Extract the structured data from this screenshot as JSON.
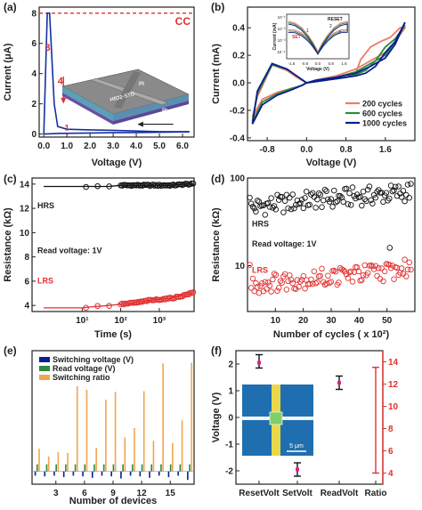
{
  "panels": {
    "a": {
      "label": "(a)"
    },
    "b": {
      "label": "(b)"
    },
    "c": {
      "label": "(c)"
    },
    "d": {
      "label": "(d)"
    },
    "e": {
      "label": "(e)"
    },
    "f": {
      "label": "(f)"
    }
  },
  "colors": {
    "blue": "#1530a0",
    "red": "#e03030",
    "green": "#2e8b3a",
    "salmon": "#f07a68",
    "navy": "#0a1f8f",
    "orange": "#f2a550",
    "magenta": "#e0208a",
    "black": "#111111"
  },
  "chart_data": [
    {
      "id": "a",
      "type": "line",
      "xlabel": "Voltage (V)",
      "ylabel": "Current (μA)",
      "xlim": [
        -0.2,
        6.5
      ],
      "ylim": [
        -0.2,
        8.4
      ],
      "xticks": [
        "0.0",
        "1.0",
        "2.0",
        "3.0",
        "4.0",
        "5.0",
        "6.0"
      ],
      "yticks": [
        "0",
        "2",
        "4",
        "6",
        "8"
      ],
      "compliance": {
        "label": "CC",
        "value": 8.0
      },
      "annotations": {
        "n3": "3",
        "n4": "4",
        "n1": "1"
      },
      "inset": {
        "layer1": "Pt",
        "layer2": "HfO2-STO",
        "layer3": "Pt"
      },
      "series": [
        {
          "x": [
            0,
            0.3,
            0.6,
            1.0,
            2.0,
            3.0,
            4.0,
            5.0,
            6.0,
            6.3
          ],
          "y": [
            0,
            0.02,
            0.04,
            0.05,
            0.07,
            0.09,
            0.1,
            0.12,
            0.14,
            0.15
          ]
        },
        {
          "x": [
            6.3,
            5.0,
            4.0,
            3.0,
            2.0,
            1.0,
            0.6,
            0.45,
            0.35,
            0.25,
            0.15,
            0
          ],
          "y": [
            0.15,
            0.16,
            0.2,
            0.25,
            0.28,
            0.32,
            0.5,
            2.0,
            5.0,
            8.0,
            8.0,
            0
          ]
        }
      ]
    },
    {
      "id": "b",
      "type": "line",
      "xlabel": "Voltage (V)",
      "ylabel": "Current (mA)",
      "xlim": [
        -1.2,
        2.2
      ],
      "ylim": [
        -0.42,
        0.55
      ],
      "xticks": [
        "-0.8",
        "0.0",
        "0.8",
        "1.6"
      ],
      "yticks": [
        "-0.4",
        "-0.2",
        "0.0",
        "0.2",
        "0.4"
      ],
      "legend_position": "bottom-right",
      "series": [
        {
          "name": "200 cycles",
          "x": [
            -1.1,
            -0.9,
            -0.6,
            -0.3,
            -0.1,
            0,
            0.4,
            0.8,
            1.0,
            1.1,
            1.3,
            1.5,
            1.7,
            1.9,
            2.0,
            1.8,
            1.6,
            1.3,
            1.0,
            0.6,
            0.2,
            0,
            -0.2,
            -0.4,
            -0.7,
            -1.0,
            -1.1
          ],
          "y": [
            -0.25,
            -0.12,
            -0.07,
            -0.04,
            -0.02,
            0.0,
            0.02,
            0.04,
            0.07,
            0.17,
            0.26,
            0.3,
            0.33,
            0.4,
            0.4,
            0.3,
            0.22,
            0.16,
            0.1,
            0.05,
            0.02,
            0.0,
            0.04,
            0.09,
            0.13,
            -0.1,
            -0.25
          ]
        },
        {
          "name": "600 cycles",
          "x": [
            -1.1,
            -0.9,
            -0.6,
            -0.3,
            -0.1,
            0,
            0.4,
            0.8,
            1.0,
            1.2,
            1.4,
            1.6,
            1.8,
            2.0,
            1.8,
            1.6,
            1.3,
            1.0,
            0.6,
            0.2,
            0,
            -0.2,
            -0.4,
            -0.7,
            -1.0,
            -1.1
          ],
          "y": [
            -0.28,
            -0.14,
            -0.08,
            -0.04,
            -0.02,
            0.0,
            0.02,
            0.04,
            0.06,
            0.09,
            0.16,
            0.26,
            0.32,
            0.42,
            0.3,
            0.2,
            0.14,
            0.08,
            0.04,
            0.02,
            0.0,
            0.05,
            0.1,
            0.13,
            -0.08,
            -0.28
          ]
        },
        {
          "name": "1000 cycles",
          "x": [
            -1.1,
            -0.9,
            -0.6,
            -0.3,
            -0.1,
            0,
            0.4,
            0.8,
            1.0,
            1.2,
            1.4,
            1.6,
            1.8,
            2.0,
            1.8,
            1.6,
            1.3,
            1.0,
            0.6,
            0.2,
            0,
            -0.2,
            -0.4,
            -0.7,
            -1.0,
            -1.1
          ],
          "y": [
            -0.3,
            -0.16,
            -0.09,
            -0.05,
            -0.02,
            0.0,
            0.02,
            0.04,
            0.05,
            0.07,
            0.12,
            0.22,
            0.3,
            0.44,
            0.28,
            0.18,
            0.12,
            0.07,
            0.04,
            0.02,
            0.0,
            0.05,
            0.1,
            0.14,
            -0.06,
            -0.3
          ]
        }
      ],
      "inset": {
        "xlabel": "Voltage (V)",
        "ylabel": "Current (mA)",
        "xticks": [
          "-1.6",
          "-0.8",
          "0.0",
          "0.8",
          "1.6"
        ],
        "yticks": [
          "10⁻¹",
          "10⁻²",
          "10⁻³",
          "10⁻⁴"
        ],
        "labels": {
          "set": "SET",
          "reset": "RESET",
          "n1": "1",
          "n2": "2",
          "n3": "3"
        }
      }
    },
    {
      "id": "c",
      "type": "scatter",
      "xlabel": "Time (s)",
      "ylabel": "Resistance (kΩ)",
      "x_scale": "log",
      "xlim": [
        0.5,
        8000
      ],
      "ylim": [
        3.5,
        14.5
      ],
      "xticks": [
        "10¹",
        "10²",
        "10³"
      ],
      "yticks": [
        "4",
        "6",
        "8",
        "10",
        "12",
        "14"
      ],
      "annotations": {
        "hrs": "HRS",
        "lrs": "LRS",
        "read": "Read voltage: 1V"
      },
      "series": [
        {
          "name": "HRS",
          "x": [
            1,
            2,
            5,
            10,
            20,
            50,
            100,
            200,
            500,
            1000,
            2000,
            5000,
            8000
          ],
          "y": [
            13.8,
            13.8,
            13.8,
            13.8,
            13.8,
            13.8,
            13.9,
            13.9,
            13.9,
            13.9,
            13.9,
            14.0,
            14.0
          ]
        },
        {
          "name": "LRS",
          "x": [
            1,
            2,
            5,
            10,
            20,
            50,
            100,
            200,
            500,
            1000,
            2000,
            5000,
            8000
          ],
          "y": [
            3.8,
            3.8,
            3.8,
            3.8,
            3.9,
            4.0,
            4.1,
            4.2,
            4.4,
            4.5,
            4.6,
            4.9,
            5.1
          ]
        }
      ]
    },
    {
      "id": "d",
      "type": "scatter",
      "xlabel": "Number of cycles ( x 10²)",
      "ylabel": "Resistance (kΩ)",
      "y_scale": "log",
      "xlim": [
        0,
        60
      ],
      "ylim": [
        3,
        100
      ],
      "xticks": [
        "10",
        "20",
        "30",
        "40",
        "50"
      ],
      "yticks": [
        "10",
        "100"
      ],
      "annotations": {
        "hrs": "HRS",
        "lrs": "LRS",
        "read": "Read voltage: 1V"
      },
      "series": [
        {
          "name": "HRS",
          "x": [
            1,
            5,
            10,
            15,
            20,
            25,
            30,
            35,
            40,
            45,
            50,
            55,
            59
          ],
          "y": [
            45,
            48,
            50,
            52,
            55,
            57,
            58,
            60,
            62,
            63,
            65,
            68,
            70
          ]
        },
        {
          "name": "LRS",
          "x": [
            1,
            5,
            10,
            15,
            20,
            25,
            30,
            35,
            40,
            45,
            50,
            55,
            59
          ],
          "y": [
            6,
            6.2,
            6.5,
            6.8,
            7,
            7.2,
            7.5,
            7.8,
            8,
            8.3,
            8.6,
            9,
            9.5
          ]
        }
      ]
    },
    {
      "id": "e",
      "type": "bar",
      "xlabel": "Number of devices",
      "xlim": [
        0.5,
        17.5
      ],
      "xticks": [
        "3",
        "6",
        "9",
        "12",
        "15"
      ],
      "ylim": [
        -1.8,
        17
      ],
      "legend_position": "top-left",
      "categories": [
        1,
        2,
        3,
        4,
        5,
        6,
        7,
        8,
        9,
        10,
        11,
        12,
        13,
        14,
        15,
        16,
        17
      ],
      "series": [
        {
          "name": "Switching voltage (V)",
          "values": [
            -0.6,
            -0.7,
            -0.6,
            -0.8,
            -0.6,
            -0.7,
            -0.9,
            -0.6,
            -0.7,
            -1.0,
            -0.6,
            -0.7,
            -0.9,
            -0.6,
            -0.8,
            -0.6,
            -1.2
          ]
        },
        {
          "name": "Read voltage (V)",
          "values": [
            1,
            1,
            1,
            1,
            1,
            1,
            1,
            1,
            1,
            1,
            1,
            1,
            1,
            1,
            1,
            1,
            1
          ]
        },
        {
          "name": "Switching ratio",
          "values": [
            3.2,
            2.1,
            2.7,
            2.6,
            12.0,
            11.5,
            3.3,
            10.1,
            11.2,
            4.8,
            6.1,
            11.3,
            4.3,
            15.2,
            4.0,
            7.2,
            15.3
          ]
        }
      ]
    },
    {
      "id": "f",
      "type": "scatter",
      "ylabel": "Voltage (V)",
      "categories": [
        "ResetVolt",
        "SetVolt",
        "ReadVolt",
        "Ratio"
      ],
      "ylim": [
        -2.5,
        2.5
      ],
      "yticks": [
        "-2",
        "-1",
        "0",
        "1",
        "2"
      ],
      "y2lim": [
        3,
        15
      ],
      "y2ticks": [
        "4",
        "6",
        "8",
        "10",
        "12",
        "14"
      ],
      "inset": {
        "scale": "5 μm"
      },
      "series": [
        {
          "name": "ResetVolt",
          "mean": 2.05,
          "low": 1.85,
          "high": 2.35
        },
        {
          "name": "SetVolt",
          "mean": -1.95,
          "low": -2.2,
          "high": -1.7
        },
        {
          "name": "ReadVolt",
          "mean": 1.3,
          "low": 1.05,
          "high": 1.55
        },
        {
          "name": "Ratio",
          "mean": 8.8,
          "low": 4.0,
          "high": 13.5
        }
      ]
    }
  ]
}
